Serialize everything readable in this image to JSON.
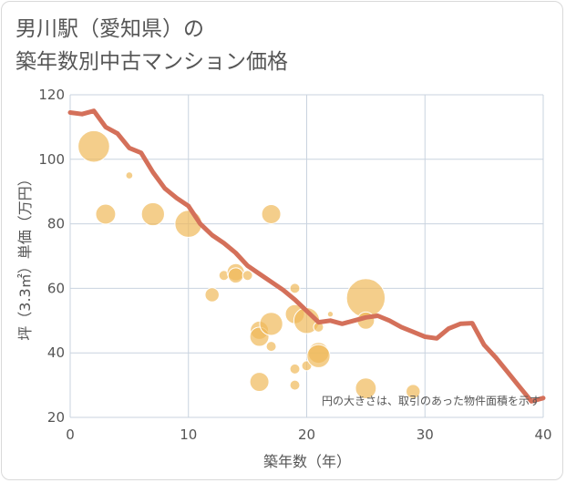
{
  "title": {
    "line1": "男川駅（愛知県）の",
    "line2": "築年数別中古マンション価格"
  },
  "chart_data": {
    "type": "scatter",
    "xlabel": "築年数（年）",
    "ylabel": "坪（3.3㎡）単価（万円）",
    "xlim": [
      0,
      40
    ],
    "ylim": [
      20,
      120
    ],
    "x_ticks": [
      "0",
      "10",
      "20",
      "30",
      "40"
    ],
    "y_ticks": [
      "20",
      "40",
      "60",
      "80",
      "100",
      "120"
    ],
    "grid": true,
    "note": "円の大きさは、取引のあった物件面積を示す",
    "colors": {
      "bubble": "#f0b95a",
      "trend": "#d4705a",
      "grid": "#c9d3df"
    },
    "bubbles": [
      {
        "x": 2,
        "y": 104,
        "size": 3
      },
      {
        "x": 3,
        "y": 83,
        "size": 1.2
      },
      {
        "x": 5,
        "y": 95,
        "size": 0.15
      },
      {
        "x": 7,
        "y": 83,
        "size": 1.6
      },
      {
        "x": 10,
        "y": 80,
        "size": 2.2
      },
      {
        "x": 12,
        "y": 58,
        "size": 0.6
      },
      {
        "x": 13,
        "y": 64,
        "size": 0.3
      },
      {
        "x": 14,
        "y": 65,
        "size": 0.9
      },
      {
        "x": 14,
        "y": 64,
        "size": 0.7
      },
      {
        "x": 15,
        "y": 64,
        "size": 0.3
      },
      {
        "x": 16,
        "y": 47,
        "size": 1.0
      },
      {
        "x": 16,
        "y": 45,
        "size": 1.1
      },
      {
        "x": 16,
        "y": 31,
        "size": 1.1
      },
      {
        "x": 17,
        "y": 83,
        "size": 1.1
      },
      {
        "x": 17,
        "y": 49,
        "size": 1.6
      },
      {
        "x": 17,
        "y": 42,
        "size": 0.3
      },
      {
        "x": 19,
        "y": 60,
        "size": 0.3
      },
      {
        "x": 19,
        "y": 52,
        "size": 1.1
      },
      {
        "x": 19,
        "y": 35,
        "size": 0.3
      },
      {
        "x": 19,
        "y": 30,
        "size": 0.3
      },
      {
        "x": 20,
        "y": 50,
        "size": 2.0
      },
      {
        "x": 20,
        "y": 36,
        "size": 0.3
      },
      {
        "x": 21,
        "y": 48,
        "size": 0.3
      },
      {
        "x": 21,
        "y": 40,
        "size": 1.3
      },
      {
        "x": 21,
        "y": 39,
        "size": 1.6
      },
      {
        "x": 22,
        "y": 52,
        "size": 0.1
      },
      {
        "x": 25,
        "y": 57,
        "size": 4.5
      },
      {
        "x": 25,
        "y": 50,
        "size": 0.9
      },
      {
        "x": 25,
        "y": 29,
        "size": 1.3
      },
      {
        "x": 29,
        "y": 28,
        "size": 0.6
      }
    ],
    "trend": {
      "x": [
        0,
        1,
        2,
        3,
        4,
        5,
        6,
        7,
        8,
        9,
        10,
        11,
        12,
        13,
        14,
        15,
        16,
        17,
        18,
        19,
        20,
        21,
        22,
        23,
        24,
        25,
        26,
        27,
        28,
        29,
        30,
        31,
        32,
        33,
        34,
        35,
        36,
        37,
        38,
        39,
        40
      ],
      "y": [
        114.5,
        114,
        115,
        110,
        108,
        103.5,
        102,
        96,
        91,
        88,
        85.5,
        80,
        76.5,
        74,
        71,
        67,
        64.5,
        62,
        59.5,
        56.5,
        53,
        49.5,
        50,
        49,
        50,
        51,
        51.5,
        50,
        48,
        46.5,
        45,
        44.5,
        47.5,
        49,
        49.2,
        42.5,
        38.5,
        34,
        29.5,
        25,
        26
      ]
    }
  }
}
